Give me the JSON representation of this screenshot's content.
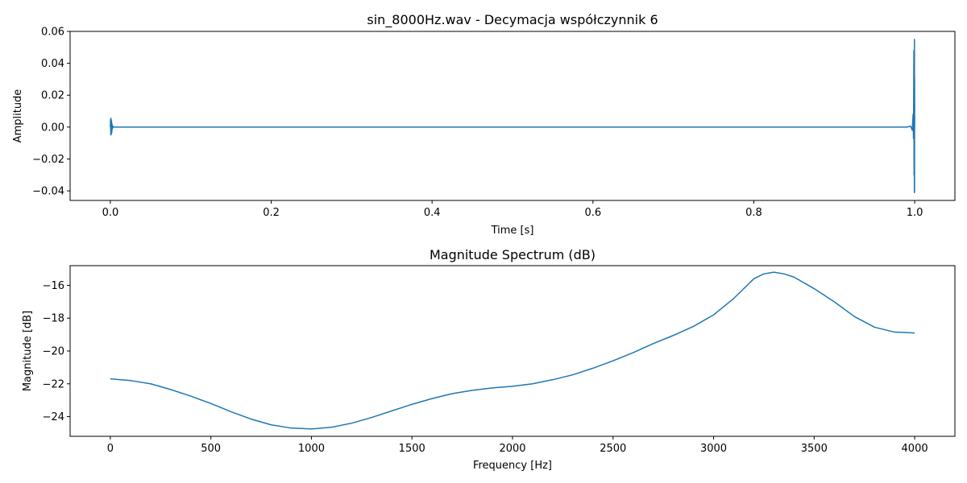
{
  "chart_data": [
    {
      "type": "line",
      "title": "sin_8000Hz.wav - Decymacja współczynnik 6",
      "xlabel": "Time [s]",
      "ylabel": "Amplitude",
      "xlim": [
        -0.05,
        1.05
      ],
      "ylim": [
        -0.046,
        0.06
      ],
      "xticks": [
        0.0,
        0.2,
        0.4,
        0.6,
        0.8,
        1.0
      ],
      "xtick_labels": [
        "0.0",
        "0.2",
        "0.4",
        "0.6",
        "0.8",
        "1.0"
      ],
      "yticks": [
        -0.04,
        -0.02,
        0.0,
        0.02,
        0.04,
        0.06
      ],
      "ytick_labels": [
        "−0.04",
        "−0.02",
        "0.00",
        "0.02",
        "0.04",
        "0.06"
      ],
      "grid": false,
      "color": "#1f77b4",
      "series": [
        {
          "x": [
            0.0,
            0.0003,
            0.0006,
            0.0009,
            0.0012,
            0.0015,
            0.0018,
            0.0021,
            0.0024,
            0.0027,
            0.003,
            0.004,
            0.006,
            0.01,
            0.2,
            0.5,
            0.8,
            0.99,
            0.995,
            0.997,
            0.998,
            0.9985,
            0.999,
            0.9992,
            0.9994,
            0.9996,
            0.9997,
            0.9998,
            0.9999,
            1.0
          ],
          "y": [
            0.0,
            0.005,
            -0.005,
            0.0055,
            -0.0045,
            0.004,
            -0.0035,
            0.002,
            -0.0015,
            0.001,
            -0.0005,
            0.0002,
            0.0,
            0.0,
            0.0,
            0.0,
            0.0,
            0.0,
            0.0005,
            -0.002,
            0.008,
            -0.007,
            0.048,
            -0.03,
            0.025,
            -0.041,
            0.055,
            -0.041,
            0.03,
            0.0
          ]
        }
      ]
    },
    {
      "type": "line",
      "title": "Magnitude Spectrum (dB)",
      "xlabel": "Frequency [Hz]",
      "ylabel": "Magnitude [dB]",
      "xlim": [
        -200,
        4200
      ],
      "ylim": [
        -25.2,
        -14.8
      ],
      "xticks": [
        0,
        500,
        1000,
        1500,
        2000,
        2500,
        3000,
        3500,
        4000
      ],
      "xtick_labels": [
        "0",
        "500",
        "1000",
        "1500",
        "2000",
        "2500",
        "3000",
        "3500",
        "4000"
      ],
      "yticks": [
        -24,
        -22,
        -20,
        -18,
        -16
      ],
      "ytick_labels": [
        "−24",
        "−22",
        "−20",
        "−18",
        "−16"
      ],
      "grid": false,
      "color": "#1f77b4",
      "series": [
        {
          "x": [
            0,
            100,
            200,
            300,
            400,
            500,
            600,
            700,
            800,
            900,
            1000,
            1100,
            1200,
            1300,
            1400,
            1500,
            1600,
            1700,
            1800,
            1900,
            2000,
            2100,
            2200,
            2300,
            2400,
            2500,
            2600,
            2700,
            2800,
            2900,
            3000,
            3100,
            3200,
            3250,
            3300,
            3350,
            3400,
            3500,
            3600,
            3700,
            3800,
            3900,
            4000
          ],
          "y": [
            -21.7,
            -21.8,
            -22.0,
            -22.35,
            -22.75,
            -23.2,
            -23.7,
            -24.15,
            -24.5,
            -24.7,
            -24.75,
            -24.65,
            -24.4,
            -24.05,
            -23.65,
            -23.25,
            -22.9,
            -22.6,
            -22.4,
            -22.25,
            -22.15,
            -22.0,
            -21.75,
            -21.45,
            -21.05,
            -20.6,
            -20.1,
            -19.55,
            -19.05,
            -18.5,
            -17.8,
            -16.8,
            -15.6,
            -15.3,
            -15.2,
            -15.3,
            -15.5,
            -16.2,
            -17.0,
            -17.9,
            -18.55,
            -18.85,
            -18.9
          ]
        }
      ]
    }
  ]
}
